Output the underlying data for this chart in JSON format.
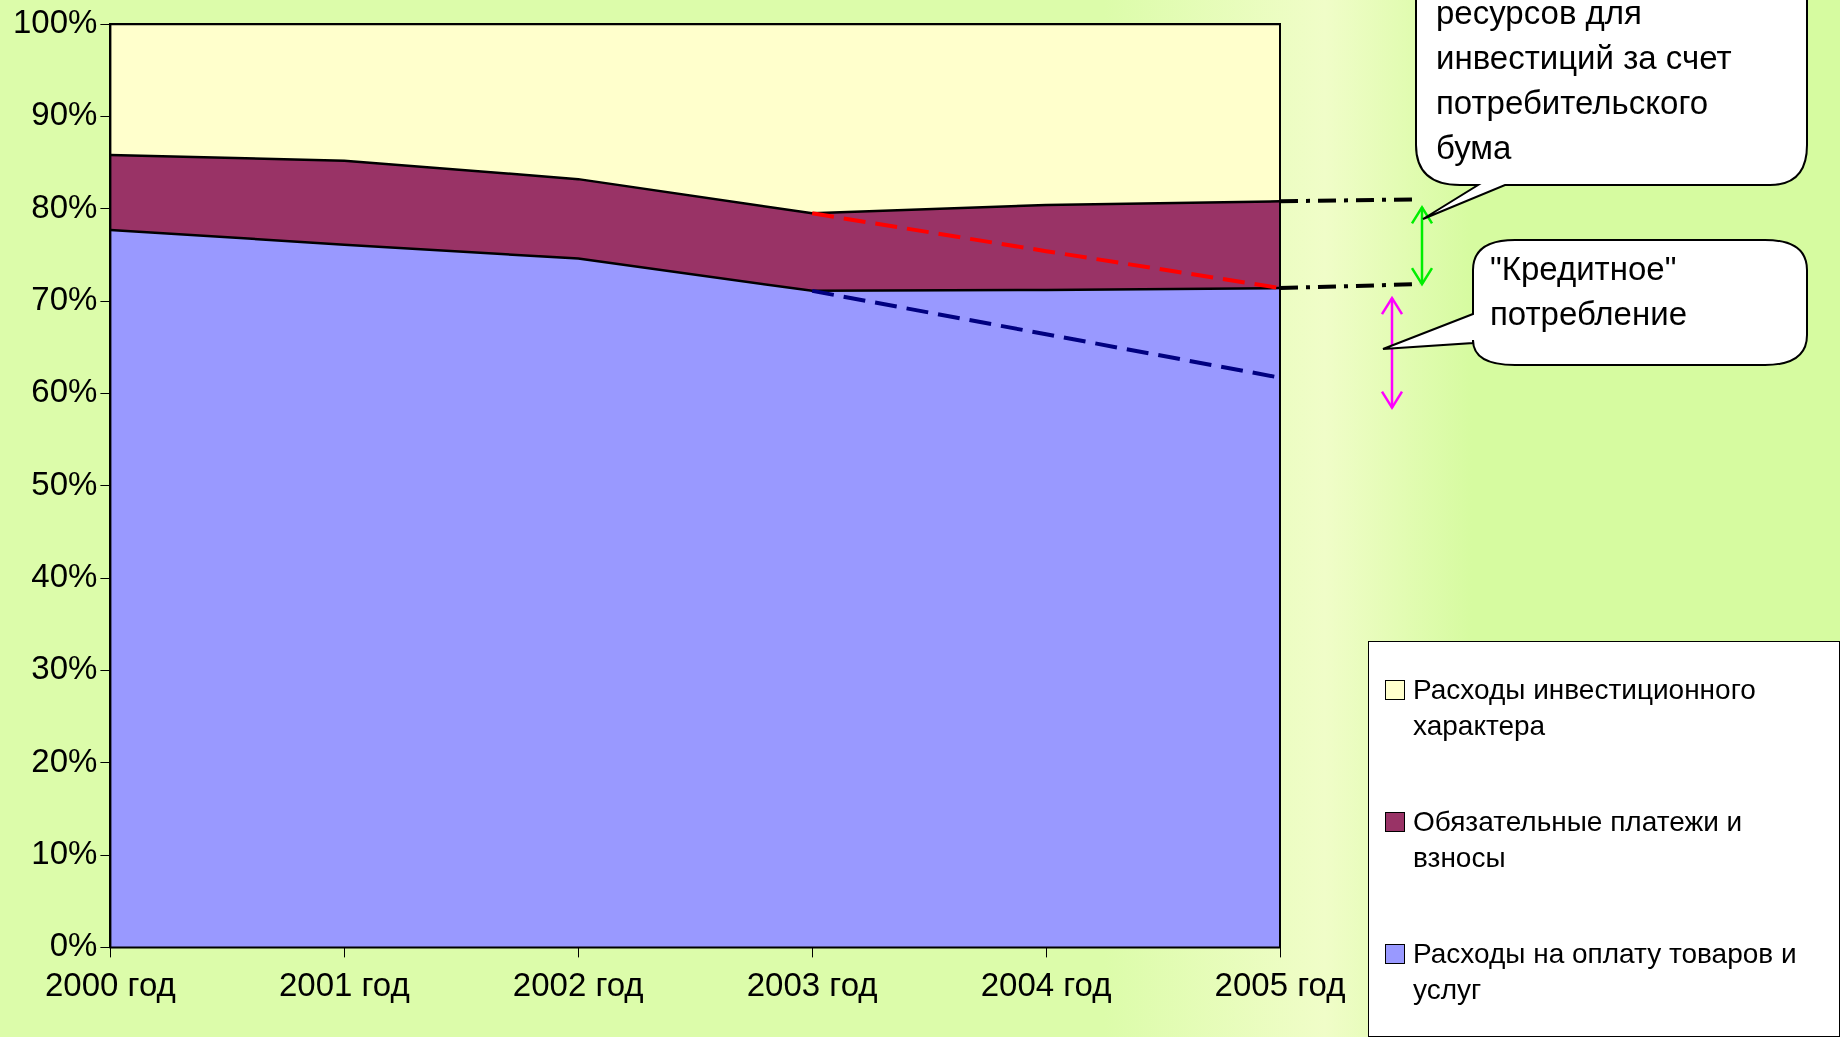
{
  "chart_data": {
    "type": "area",
    "stacked": true,
    "categories": [
      "2000 год",
      "2001 год",
      "2002 год",
      "2003 год",
      "2004 год",
      "2005 год"
    ],
    "ylim": [
      0,
      100
    ],
    "yticks": [
      {
        "value": 0,
        "label": "0%"
      },
      {
        "value": 10,
        "label": "10%"
      },
      {
        "value": 20,
        "label": "20%"
      },
      {
        "value": 30,
        "label": "30%"
      },
      {
        "value": 40,
        "label": "40%"
      },
      {
        "value": 50,
        "label": "50%"
      },
      {
        "value": 60,
        "label": "60%"
      },
      {
        "value": 70,
        "label": "70%"
      },
      {
        "value": 80,
        "label": "80%"
      },
      {
        "value": 90,
        "label": "90%"
      },
      {
        "value": 100,
        "label": "100%"
      }
    ],
    "legend": "bottom right",
    "series": [
      {
        "name": "Расходы на оплату товаров и услуг",
        "color": "#9999ff",
        "values": [
          77.7,
          76.1,
          74.6,
          71.1,
          71.2,
          71.4
        ]
      },
      {
        "name": "Обязательные платежи и взносы",
        "color": "#993366",
        "values": [
          8.1,
          9.1,
          8.6,
          8.4,
          9.2,
          9.4
        ]
      },
      {
        "name": "Расходы инвестиционного характера",
        "color": "#ffffcc",
        "values": [
          14.2,
          14.8,
          16.8,
          20.5,
          19.6,
          19.2
        ]
      },
      {
        "type": "line",
        "color": "#ff0000",
        "line_style": "dashed",
        "values": [
          null,
          null,
          null,
          79.5,
          75.4,
          71.4
        ]
      },
      {
        "type": "line",
        "color": "#000080",
        "line_style": "dashed",
        "values": [
          null,
          null,
          null,
          71.1,
          66.4,
          61.7
        ]
      }
    ],
    "annotations": [
      "ресурсов для\nинвестиций за счет\nпотребительского\nбума",
      "\"Кредитное\"\nпотребление"
    ]
  }
}
